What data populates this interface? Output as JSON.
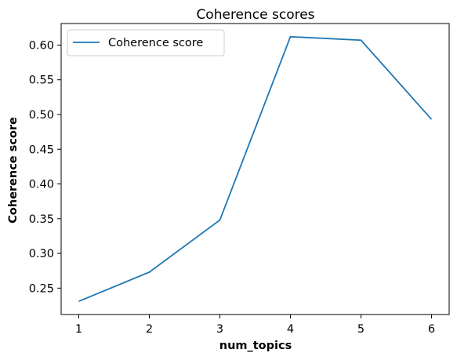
{
  "chart_data": {
    "type": "line",
    "title": "Coherence scores",
    "xlabel": "num_topics",
    "ylabel": "Coherence score",
    "x": [
      1,
      2,
      3,
      4,
      5,
      6
    ],
    "series": [
      {
        "name": "Coherence score",
        "values": [
          0.231,
          0.273,
          0.348,
          0.612,
          0.607,
          0.493
        ],
        "color": "#1f77b4"
      }
    ],
    "xlim": [
      0.75,
      6.25
    ],
    "ylim": [
      0.212,
      0.631
    ],
    "xticks": [
      1,
      2,
      3,
      4,
      5,
      6
    ],
    "yticks": [
      0.25,
      0.3,
      0.35,
      0.4,
      0.45,
      0.5,
      0.55,
      0.6
    ],
    "ytick_labels": [
      "0.25",
      "0.30",
      "0.35",
      "0.40",
      "0.45",
      "0.50",
      "0.55",
      "0.60"
    ],
    "xtick_labels": [
      "1",
      "2",
      "3",
      "4",
      "5",
      "6"
    ],
    "grid": false,
    "legend_position": "top-left"
  }
}
